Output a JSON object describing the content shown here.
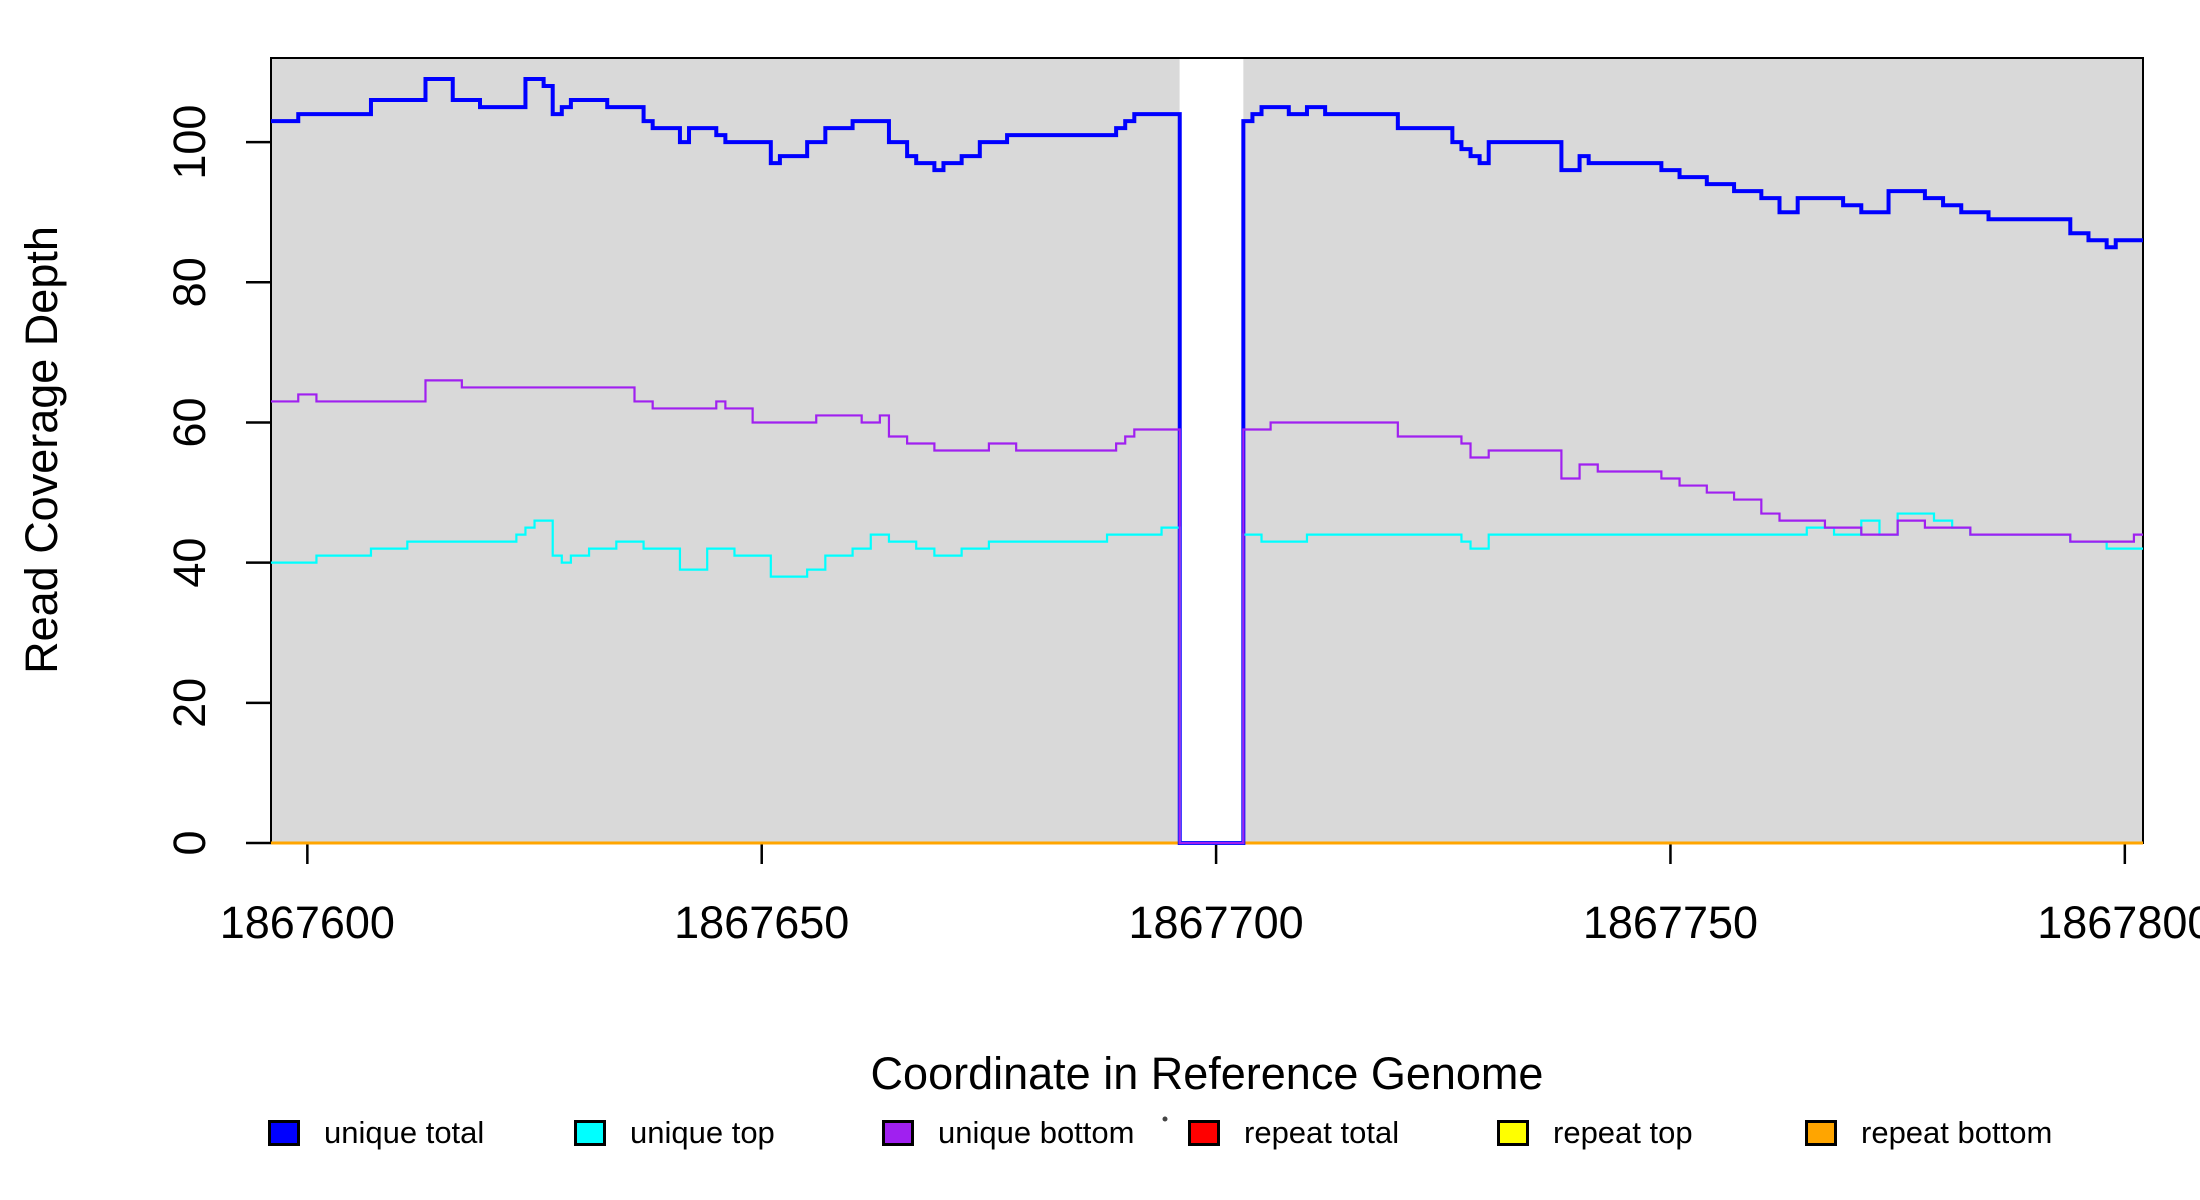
{
  "chart_data": {
    "type": "line",
    "subtype": "step",
    "title": "",
    "xlabel": "Coordinate in Reference Genome",
    "ylabel": "Read Coverage Depth",
    "xlim": [
      1867596,
      1867802
    ],
    "ylim": [
      0,
      112
    ],
    "x_ticks": [
      1867600,
      1867650,
      1867700,
      1867750,
      1867800
    ],
    "y_ticks": [
      0,
      20,
      40,
      60,
      80,
      100
    ],
    "grid": false,
    "plot_background": "#D9D9D9",
    "gap_background": "#FFFFFF",
    "zero_coverage_gap": {
      "start": 1867696,
      "end": 1867703
    },
    "legend_position": "bottom",
    "axis_color": "#000000",
    "series": [
      {
        "name": "unique total",
        "color": "#0000FF",
        "line_width": 4,
        "segments": [
          [
            1867596,
            103
          ],
          [
            1867599,
            104
          ],
          [
            1867607,
            106
          ],
          [
            1867613,
            109
          ],
          [
            1867616,
            106
          ],
          [
            1867619,
            105
          ],
          [
            1867624,
            109
          ],
          [
            1867626,
            108
          ],
          [
            1867627,
            104
          ],
          [
            1867628,
            105
          ],
          [
            1867629,
            106
          ],
          [
            1867633,
            105
          ],
          [
            1867637,
            103
          ],
          [
            1867638,
            102
          ],
          [
            1867641,
            100
          ],
          [
            1867642,
            102
          ],
          [
            1867645,
            101
          ],
          [
            1867646,
            100
          ],
          [
            1867651,
            97
          ],
          [
            1867652,
            98
          ],
          [
            1867655,
            100
          ],
          [
            1867657,
            102
          ],
          [
            1867660,
            103
          ],
          [
            1867664,
            100
          ],
          [
            1867666,
            98
          ],
          [
            1867667,
            97
          ],
          [
            1867669,
            96
          ],
          [
            1867670,
            97
          ],
          [
            1867672,
            98
          ],
          [
            1867674,
            100
          ],
          [
            1867677,
            101
          ],
          [
            1867689,
            102
          ],
          [
            1867690,
            103
          ],
          [
            1867691,
            104
          ],
          [
            1867696,
            0
          ],
          [
            1867703,
            103
          ],
          [
            1867704,
            104
          ],
          [
            1867705,
            105
          ],
          [
            1867708,
            104
          ],
          [
            1867710,
            105
          ],
          [
            1867712,
            104
          ],
          [
            1867720,
            102
          ],
          [
            1867726,
            100
          ],
          [
            1867727,
            99
          ],
          [
            1867728,
            98
          ],
          [
            1867729,
            97
          ],
          [
            1867730,
            100
          ],
          [
            1867738,
            96
          ],
          [
            1867740,
            98
          ],
          [
            1867741,
            97
          ],
          [
            1867749,
            96
          ],
          [
            1867751,
            95
          ],
          [
            1867754,
            94
          ],
          [
            1867757,
            93
          ],
          [
            1867760,
            92
          ],
          [
            1867762,
            90
          ],
          [
            1867764,
            92
          ],
          [
            1867769,
            91
          ],
          [
            1867771,
            90
          ],
          [
            1867774,
            93
          ],
          [
            1867778,
            92
          ],
          [
            1867780,
            91
          ],
          [
            1867782,
            90
          ],
          [
            1867785,
            89
          ],
          [
            1867794,
            87
          ],
          [
            1867796,
            86
          ],
          [
            1867798,
            85
          ],
          [
            1867799,
            86
          ]
        ]
      },
      {
        "name": "unique top",
        "color": "#00FFFF",
        "line_width": 2.2,
        "segments": [
          [
            1867596,
            40
          ],
          [
            1867601,
            41
          ],
          [
            1867607,
            42
          ],
          [
            1867611,
            43
          ],
          [
            1867623,
            44
          ],
          [
            1867624,
            45
          ],
          [
            1867625,
            46
          ],
          [
            1867627,
            41
          ],
          [
            1867628,
            40
          ],
          [
            1867629,
            41
          ],
          [
            1867631,
            42
          ],
          [
            1867634,
            43
          ],
          [
            1867637,
            42
          ],
          [
            1867641,
            39
          ],
          [
            1867644,
            42
          ],
          [
            1867647,
            41
          ],
          [
            1867651,
            38
          ],
          [
            1867655,
            39
          ],
          [
            1867657,
            41
          ],
          [
            1867660,
            42
          ],
          [
            1867662,
            44
          ],
          [
            1867664,
            43
          ],
          [
            1867667,
            42
          ],
          [
            1867669,
            41
          ],
          [
            1867672,
            42
          ],
          [
            1867675,
            43
          ],
          [
            1867688,
            44
          ],
          [
            1867694,
            45
          ],
          [
            1867696,
            0
          ],
          [
            1867703,
            44
          ],
          [
            1867705,
            43
          ],
          [
            1867710,
            44
          ],
          [
            1867727,
            43
          ],
          [
            1867728,
            42
          ],
          [
            1867730,
            44
          ],
          [
            1867765,
            45
          ],
          [
            1867768,
            44
          ],
          [
            1867771,
            46
          ],
          [
            1867773,
            44
          ],
          [
            1867775,
            47
          ],
          [
            1867779,
            46
          ],
          [
            1867781,
            45
          ],
          [
            1867783,
            44
          ],
          [
            1867794,
            43
          ],
          [
            1867798,
            42
          ]
        ]
      },
      {
        "name": "unique bottom",
        "color": "#A020F0",
        "line_width": 2.2,
        "segments": [
          [
            1867596,
            63
          ],
          [
            1867599,
            64
          ],
          [
            1867601,
            63
          ],
          [
            1867613,
            66
          ],
          [
            1867617,
            65
          ],
          [
            1867636,
            63
          ],
          [
            1867638,
            62
          ],
          [
            1867645,
            63
          ],
          [
            1867646,
            62
          ],
          [
            1867649,
            60
          ],
          [
            1867656,
            61
          ],
          [
            1867661,
            60
          ],
          [
            1867663,
            61
          ],
          [
            1867664,
            58
          ],
          [
            1867666,
            57
          ],
          [
            1867669,
            56
          ],
          [
            1867675,
            57
          ],
          [
            1867678,
            56
          ],
          [
            1867689,
            57
          ],
          [
            1867690,
            58
          ],
          [
            1867691,
            59
          ],
          [
            1867696,
            0
          ],
          [
            1867703,
            59
          ],
          [
            1867706,
            60
          ],
          [
            1867720,
            58
          ],
          [
            1867727,
            57
          ],
          [
            1867728,
            55
          ],
          [
            1867730,
            56
          ],
          [
            1867738,
            52
          ],
          [
            1867740,
            54
          ],
          [
            1867742,
            53
          ],
          [
            1867749,
            52
          ],
          [
            1867751,
            51
          ],
          [
            1867754,
            50
          ],
          [
            1867757,
            49
          ],
          [
            1867760,
            47
          ],
          [
            1867762,
            46
          ],
          [
            1867767,
            45
          ],
          [
            1867771,
            44
          ],
          [
            1867775,
            46
          ],
          [
            1867778,
            45
          ],
          [
            1867783,
            44
          ],
          [
            1867794,
            43
          ],
          [
            1867801,
            44
          ]
        ]
      },
      {
        "name": "repeat total",
        "color": "#FF0000",
        "line_width": 2.5,
        "segments": [
          [
            1867596,
            0
          ]
        ]
      },
      {
        "name": "repeat top",
        "color": "#FFFF00",
        "line_width": 2.5,
        "segments": [
          [
            1867596,
            0
          ]
        ]
      },
      {
        "name": "repeat bottom",
        "color": "#FFA500",
        "line_width": 3,
        "segments": [
          [
            1867596,
            0
          ]
        ]
      }
    ],
    "draw_order": [
      "repeat total",
      "repeat top",
      "repeat bottom",
      "unique total",
      "unique top",
      "unique bottom"
    ]
  }
}
